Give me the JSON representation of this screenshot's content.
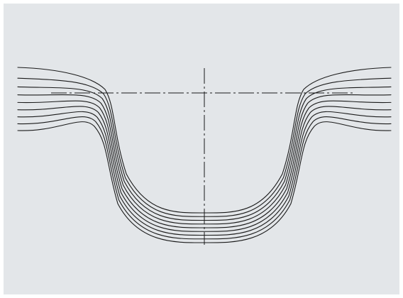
{
  "figure": {
    "panel_color": "#e3e6e9",
    "line_color": "#1a1a1a",
    "profile_count": 9,
    "has_horizontal_centerline": true,
    "has_vertical_centerline": true
  }
}
